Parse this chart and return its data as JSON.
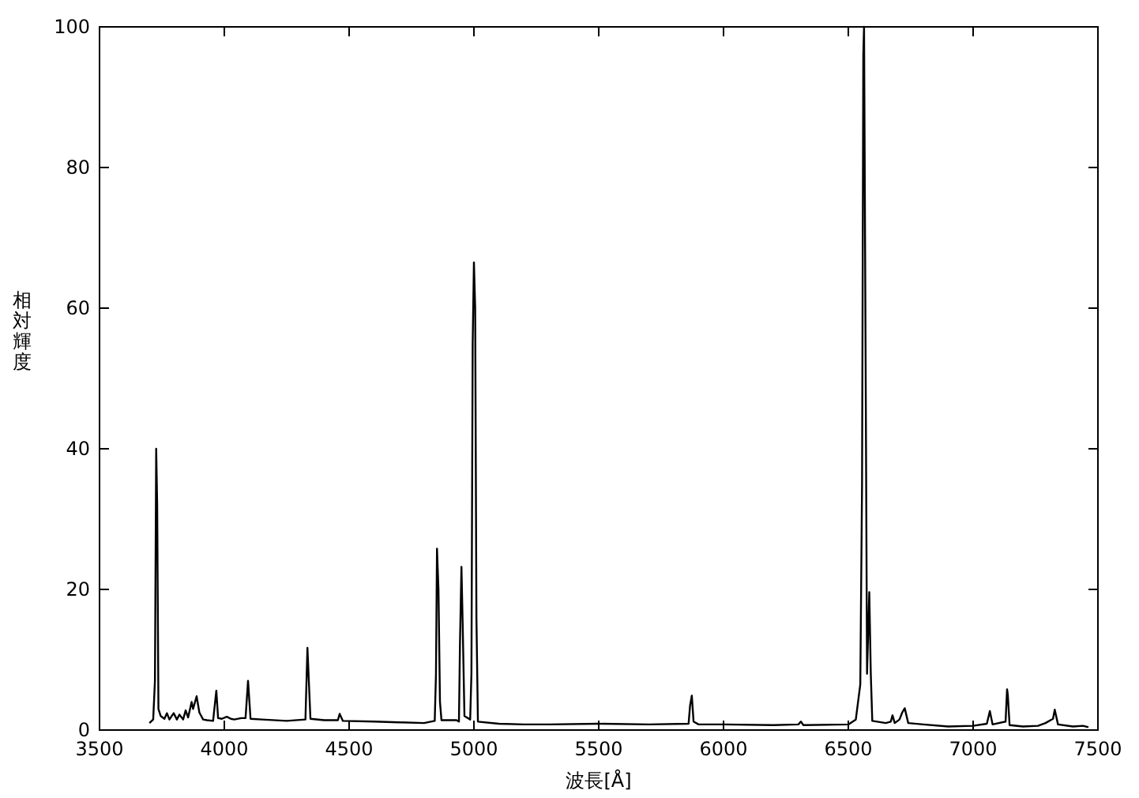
{
  "chart_data": {
    "type": "line",
    "xlabel": "波長[Å]",
    "ylabel": "相対輝度",
    "xlim": [
      3500,
      7500
    ],
    "ylim": [
      0,
      100
    ],
    "xticks": [
      3500,
      4000,
      4500,
      5000,
      5500,
      6000,
      6500,
      7000,
      7500
    ],
    "yticks": [
      0,
      20,
      40,
      60,
      80,
      100
    ],
    "grid": false,
    "marker": "none",
    "line_style": "solid",
    "series": [
      {
        "color": "#000000",
        "x": [
          3700,
          3715,
          3722,
          3727,
          3731,
          3736,
          3745,
          3760,
          3770,
          3780,
          3797,
          3810,
          3820,
          3835,
          3845,
          3855,
          3869,
          3875,
          3889,
          3900,
          3915,
          3930,
          3955,
          3968,
          3975,
          3990,
          4010,
          4026,
          4040,
          4068,
          4085,
          4095,
          4105,
          4150,
          4250,
          4325,
          4333,
          4345,
          4400,
          4455,
          4462,
          4475,
          4600,
          4700,
          4800,
          4843,
          4848,
          4852,
          4858,
          4864,
          4870,
          4930,
          4940,
          4944,
          4950,
          4955,
          4962,
          4985,
          4990,
          4995,
          5000,
          5005,
          5010,
          5016,
          5100,
          5200,
          5300,
          5500,
          5700,
          5860,
          5866,
          5873,
          5880,
          5900,
          6000,
          6200,
          6300,
          6310,
          6320,
          6500,
          6530,
          6548,
          6555,
          6560,
          6563,
          6567,
          6575,
          6584,
          6590,
          6596,
          6650,
          6670,
          6677,
          6686,
          6705,
          6716,
          6726,
          6740,
          6800,
          6900,
          7000,
          7055,
          7067,
          7078,
          7130,
          7136,
          7139,
          7146,
          7200,
          7260,
          7290,
          7320,
          7327,
          7340,
          7400,
          7440,
          7462
        ],
        "values": [
          1.0,
          1.5,
          7,
          40,
          32,
          3,
          2,
          1.6,
          2.4,
          1.5,
          2.4,
          1.5,
          2.2,
          1.5,
          2.8,
          1.8,
          4.0,
          3.0,
          4.8,
          2.5,
          1.5,
          1.4,
          1.3,
          5.6,
          1.7,
          1.6,
          1.9,
          1.6,
          1.5,
          1.7,
          1.7,
          7.0,
          1.6,
          1.5,
          1.3,
          1.5,
          11.7,
          1.6,
          1.4,
          1.4,
          2.3,
          1.3,
          1.2,
          1.1,
          1.0,
          1.3,
          8,
          25.8,
          20,
          4,
          1.4,
          1.4,
          1.2,
          12,
          23.2,
          15,
          2,
          1.5,
          8,
          55,
          66.5,
          60,
          16,
          1.2,
          0.9,
          0.8,
          0.8,
          0.9,
          0.8,
          0.9,
          3.5,
          4.9,
          1.2,
          0.8,
          0.8,
          0.7,
          0.8,
          1.2,
          0.7,
          0.8,
          1.5,
          6.5,
          35,
          96,
          100,
          70,
          8,
          19.6,
          8,
          1.3,
          1.0,
          1.2,
          2.1,
          1.0,
          1.5,
          2.5,
          3.1,
          1.0,
          0.8,
          0.5,
          0.6,
          0.9,
          2.7,
          0.8,
          1.2,
          5.8,
          5.0,
          0.7,
          0.5,
          0.6,
          1.0,
          1.6,
          2.9,
          0.8,
          0.5,
          0.6,
          0.4
        ]
      }
    ]
  }
}
